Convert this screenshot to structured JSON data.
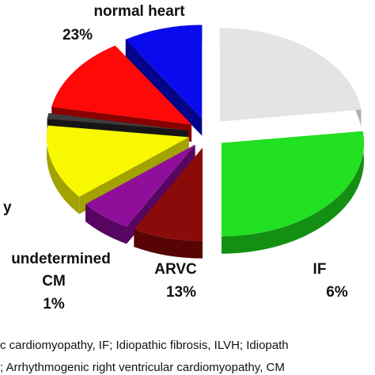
{
  "chart_data": {
    "type": "pie",
    "style": "3d-exploded",
    "slices": [
      {
        "key": "normal",
        "label": "normal heart",
        "value": 23,
        "value_label": "23%",
        "color": "#e4e4e4",
        "side_color": "#b0b0b0"
      },
      {
        "key": "green",
        "label": "",
        "value": 27,
        "value_label": "",
        "color": "#22e022",
        "side_color": "#139013"
      },
      {
        "key": "darkred",
        "label": "",
        "value": 8,
        "value_label": "",
        "color": "#8b0b0b",
        "side_color": "#560404"
      },
      {
        "key": "if",
        "label": "IF",
        "value": 6,
        "value_label": "6%",
        "color": "#8f0f9a",
        "side_color": "#560660"
      },
      {
        "key": "arvc",
        "label": "ARVC",
        "value": 13,
        "value_label": "13%",
        "color": "#f8f800",
        "side_color": "#a2a200"
      },
      {
        "key": "undetermined",
        "label": "undetermined CM",
        "label_lines": [
          "undetermined",
          "CM"
        ],
        "value": 1,
        "value_label": "1%",
        "color": "#3c3c3c",
        "side_color": "#161616"
      },
      {
        "key": "red",
        "label": "",
        "value": 13,
        "value_label": "",
        "color": "#ff0808",
        "side_color": "#8a0000"
      },
      {
        "key": "blue",
        "label": "",
        "value": 9,
        "value_label": "",
        "color": "#0a0aee",
        "side_color": "#04048a"
      }
    ],
    "partial_labels": [
      {
        "text": "y"
      }
    ],
    "footnote_lines": [
      "c cardiomyopathy, IF; Idiopathic fibrosis, ILVH; Idiopath",
      "; Arrhythmogenic right ventricular cardiomyopathy, CM"
    ]
  }
}
